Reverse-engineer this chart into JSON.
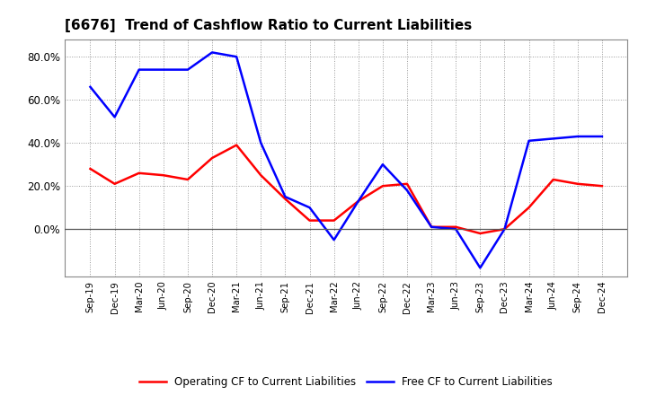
{
  "title": "[6676]  Trend of Cashflow Ratio to Current Liabilities",
  "x_labels": [
    "Sep-19",
    "Dec-19",
    "Mar-20",
    "Jun-20",
    "Sep-20",
    "Dec-20",
    "Mar-21",
    "Jun-21",
    "Sep-21",
    "Dec-21",
    "Mar-22",
    "Jun-22",
    "Sep-22",
    "Dec-22",
    "Mar-23",
    "Jun-23",
    "Sep-23",
    "Dec-23",
    "Mar-24",
    "Jun-24",
    "Sep-24",
    "Dec-24"
  ],
  "operating_cf": [
    0.28,
    0.21,
    0.26,
    0.25,
    0.23,
    0.33,
    0.39,
    0.25,
    0.14,
    0.04,
    0.04,
    0.13,
    0.2,
    0.21,
    0.01,
    0.01,
    -0.02,
    0.0,
    0.1,
    0.23,
    0.21,
    0.2
  ],
  "free_cf": [
    0.66,
    0.52,
    0.74,
    0.74,
    0.74,
    0.82,
    0.8,
    0.4,
    0.15,
    0.1,
    -0.05,
    0.13,
    0.3,
    0.18,
    0.01,
    0.0,
    -0.18,
    0.0,
    0.41,
    0.42,
    0.43,
    0.43
  ],
  "operating_cf_color": "#ff0000",
  "free_cf_color": "#0000ff",
  "background_color": "#ffffff",
  "plot_bg_color": "#ffffff",
  "grid_color": "#999999",
  "ylim": [
    -0.22,
    0.88
  ],
  "yticks": [
    0.0,
    0.2,
    0.4,
    0.6,
    0.8
  ],
  "legend_labels": [
    "Operating CF to Current Liabilities",
    "Free CF to Current Liabilities"
  ]
}
